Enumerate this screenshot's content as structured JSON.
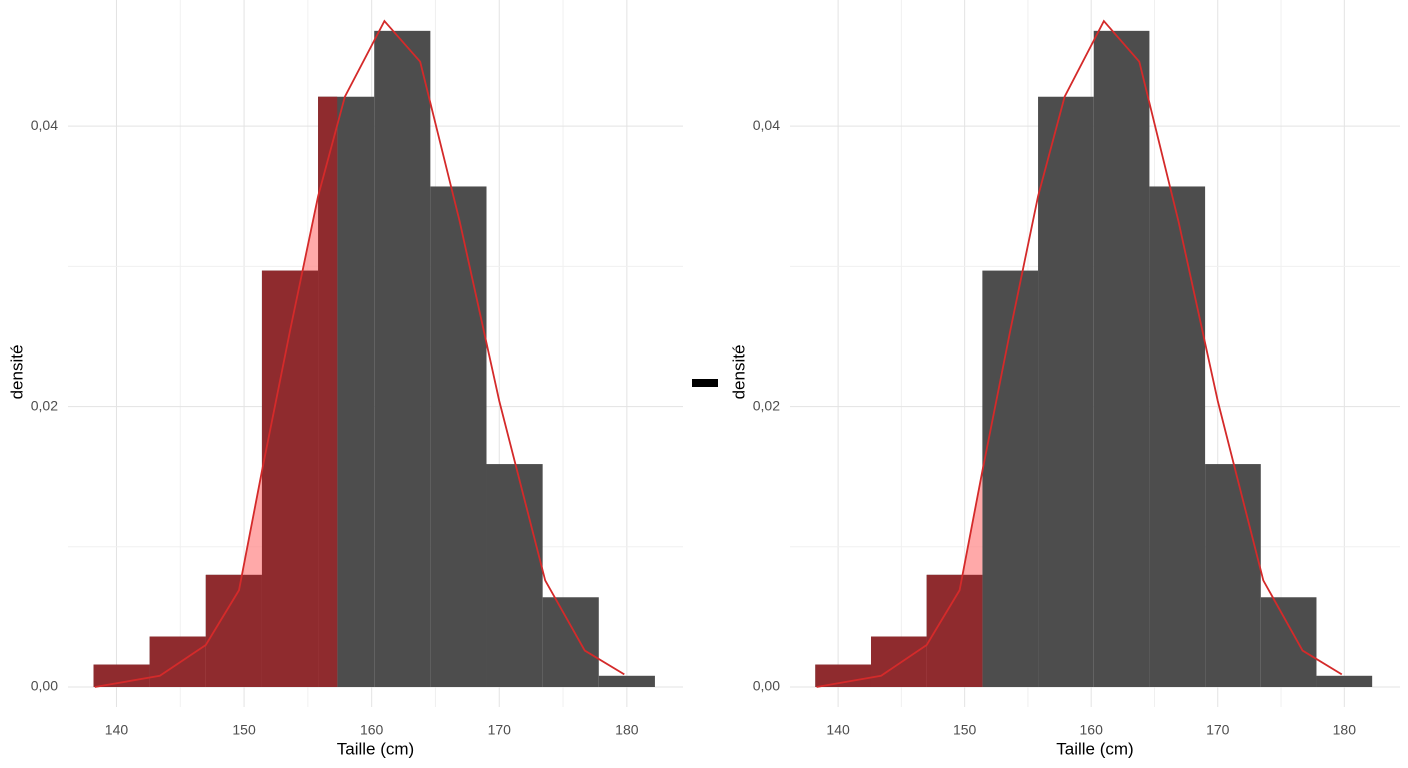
{
  "chart_data": [
    {
      "type": "histogram",
      "xlabel": "Taille (cm)",
      "ylabel": "densité",
      "bins": [
        138.2,
        142.6,
        147.0,
        151.4,
        155.8,
        160.2,
        164.6,
        169.0,
        173.4,
        177.8,
        182.2
      ],
      "values": [
        0.0016,
        0.0036,
        0.008,
        0.0297,
        0.0421,
        0.0468,
        0.0357,
        0.0159,
        0.0064,
        0.0008
      ],
      "color": "#4d4d4d",
      "shade_color": "#8f2b2e",
      "area_color": "#ff8c8c",
      "curve_color": "#d42a2a",
      "shade_to": 157.3,
      "curve": {
        "x": [
          138.3,
          143.4,
          147,
          149.6,
          151.4,
          153.6,
          155.8,
          157.9,
          161,
          163.8,
          166.9,
          170,
          173.6,
          176.7,
          179.8
        ],
        "y": [
          0,
          0.0008,
          0.003,
          0.0069,
          0.0154,
          0.0254,
          0.035,
          0.0421,
          0.0475,
          0.0446,
          0.0332,
          0.0204,
          0.0076,
          0.0026,
          0.0009
        ]
      },
      "xlim": [
        136.2,
        184.4
      ],
      "xticks": [
        140,
        150,
        160,
        170,
        180
      ],
      "ylim": [
        0,
        0.049
      ],
      "yticks": [
        {
          "value": 0,
          "label": "0,00"
        },
        {
          "value": 0.02,
          "label": "0,02"
        },
        {
          "value": 0.04,
          "label": "0,04"
        }
      ],
      "grid": true
    },
    {
      "type": "histogram",
      "xlabel": "Taille (cm)",
      "ylabel": "densité",
      "bins": [
        138.2,
        142.6,
        147.0,
        151.4,
        155.8,
        160.2,
        164.6,
        169.0,
        173.4,
        177.8,
        182.2
      ],
      "values": [
        0.0016,
        0.0036,
        0.008,
        0.0297,
        0.0421,
        0.0468,
        0.0357,
        0.0159,
        0.0064,
        0.0008
      ],
      "color": "#4d4d4d",
      "shade_color": "#8f2b2e",
      "area_color": "#ff8c8c",
      "curve_color": "#d42a2a",
      "shade_to": 151.4,
      "curve": {
        "x": [
          138.3,
          143.4,
          147,
          149.6,
          151.4,
          153.6,
          155.8,
          157.9,
          161,
          163.8,
          166.9,
          170,
          173.6,
          176.7,
          179.8
        ],
        "y": [
          0,
          0.0008,
          0.003,
          0.0069,
          0.0154,
          0.0254,
          0.035,
          0.0421,
          0.0475,
          0.0446,
          0.0332,
          0.0204,
          0.0076,
          0.0026,
          0.0009
        ]
      },
      "xlim": [
        136.2,
        184.4
      ],
      "xticks": [
        140,
        150,
        160,
        170,
        180
      ],
      "ylim": [
        0,
        0.049
      ],
      "yticks": [
        {
          "value": 0,
          "label": "0,00"
        },
        {
          "value": 0.02,
          "label": "0,02"
        },
        {
          "value": 0.04,
          "label": "0,04"
        }
      ],
      "grid": true
    }
  ]
}
